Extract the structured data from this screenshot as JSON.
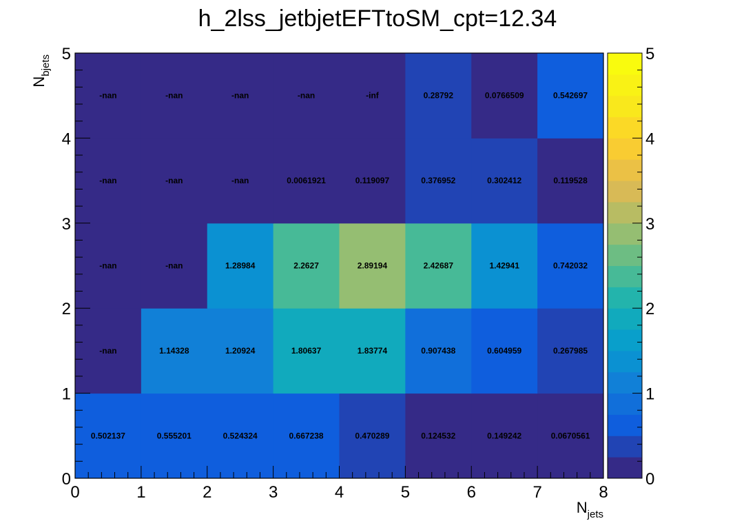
{
  "chart_data": {
    "type": "heatmap",
    "title": "h_2lss_jetbjetEFTtoSM_cpt=12.34",
    "xlabel": {
      "base": "N",
      "sub": "jets"
    },
    "ylabel": {
      "base": "N",
      "sub": "bjets"
    },
    "x_edges": [
      0,
      1,
      2,
      3,
      4,
      5,
      6,
      7,
      8
    ],
    "y_edges": [
      0,
      1,
      2,
      3,
      4,
      5
    ],
    "x_tick_labels": [
      "0",
      "1",
      "2",
      "3",
      "4",
      "5",
      "6",
      "7",
      "8"
    ],
    "y_tick_labels": [
      "0",
      "1",
      "2",
      "3",
      "4",
      "5"
    ],
    "xlim": [
      0,
      8
    ],
    "ylim": [
      0,
      5
    ],
    "zlim": [
      0,
      5
    ],
    "z_tick_labels": [
      "0",
      "1",
      "2",
      "3",
      "4",
      "5"
    ],
    "colorscale": "parula-like (dark blue to yellow)",
    "rows": [
      {
        "y_bin": "0-1",
        "labels": [
          "0.502137",
          "0.555201",
          "0.524324",
          "0.667238",
          "0.470289",
          "0.124532",
          "0.149242",
          "0.0670561"
        ]
      },
      {
        "y_bin": "1-2",
        "labels": [
          "-nan",
          "1.14328",
          "1.20924",
          "1.80637",
          "1.83774",
          "0.907438",
          "0.604959",
          "0.267985"
        ]
      },
      {
        "y_bin": "2-3",
        "labels": [
          "-nan",
          "-nan",
          "1.28984",
          "2.2627",
          "2.89194",
          "2.42687",
          "1.42941",
          "0.742032"
        ]
      },
      {
        "y_bin": "3-4",
        "labels": [
          "-nan",
          "-nan",
          "-nan",
          "0.0061921",
          "0.119097",
          "0.376952",
          "0.302412",
          "0.119528"
        ]
      },
      {
        "y_bin": "4-5",
        "labels": [
          "-nan",
          "-nan",
          "-nan",
          "-nan",
          "-inf",
          "0.28792",
          "0.0766509",
          "0.542697"
        ]
      }
    ]
  }
}
